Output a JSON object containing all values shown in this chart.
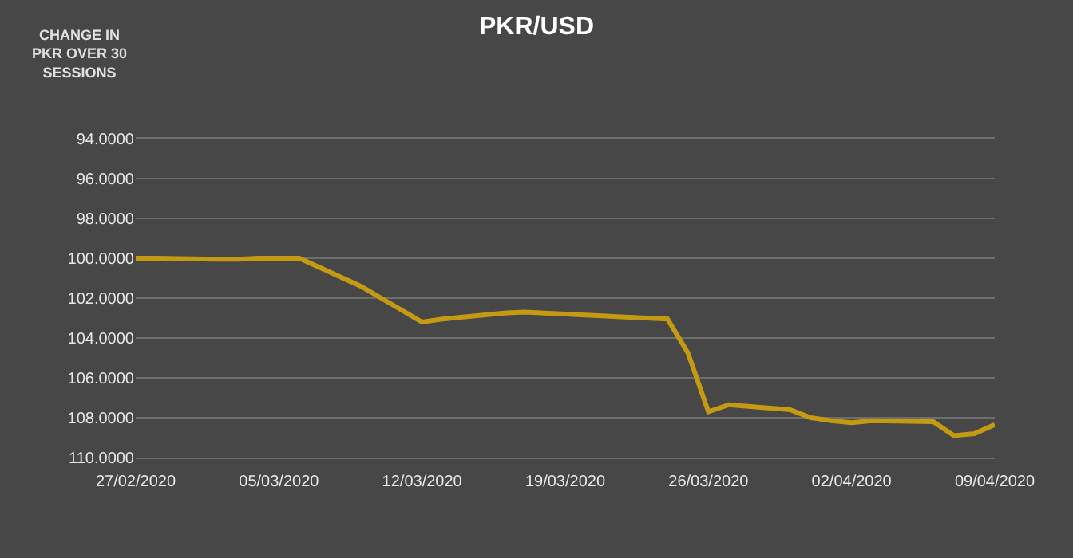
{
  "chart_data": {
    "type": "line",
    "title": "PKR/USD",
    "ylabel": "CHANGE IN\nPKR OVER 30\nSESSIONS",
    "x": [
      "2020-02-27",
      "2020-02-28",
      "2020-03-02",
      "2020-03-03",
      "2020-03-04",
      "2020-03-05",
      "2020-03-06",
      "2020-03-09",
      "2020-03-10",
      "2020-03-11",
      "2020-03-12",
      "2020-03-13",
      "2020-03-16",
      "2020-03-17",
      "2020-03-18",
      "2020-03-19",
      "2020-03-20",
      "2020-03-24",
      "2020-03-25",
      "2020-03-26",
      "2020-03-27",
      "2020-03-30",
      "2020-03-31",
      "2020-04-01",
      "2020-04-02",
      "2020-04-03",
      "2020-04-06",
      "2020-04-07",
      "2020-04-08",
      "2020-04-09"
    ],
    "series": [
      {
        "color": "#c49a12",
        "values": [
          100.0,
          100.0,
          100.05,
          100.05,
          100.0,
          100.0,
          100.0,
          101.4,
          102.0,
          102.6,
          103.2,
          103.05,
          102.75,
          102.7,
          102.75,
          102.8,
          102.85,
          103.05,
          104.75,
          107.7,
          107.35,
          107.6,
          108.0,
          108.15,
          108.25,
          108.15,
          108.2,
          108.9,
          108.8,
          108.35
        ]
      }
    ],
    "xlim": [
      "2020-02-27",
      "2020-04-09"
    ],
    "xticks": [
      {
        "value": "2020-02-27",
        "label": "27/02/2020"
      },
      {
        "value": "2020-03-05",
        "label": "05/03/2020"
      },
      {
        "value": "2020-03-12",
        "label": "12/03/2020"
      },
      {
        "value": "2020-03-19",
        "label": "19/03/2020"
      },
      {
        "value": "2020-03-26",
        "label": "26/03/2020"
      },
      {
        "value": "2020-04-02",
        "label": "02/04/2020"
      },
      {
        "value": "2020-04-09",
        "label": "09/04/2020"
      }
    ],
    "ylim": [
      110,
      94
    ],
    "yticks": [
      {
        "value": 94,
        "label": "94.0000"
      },
      {
        "value": 96,
        "label": "96.0000"
      },
      {
        "value": 98,
        "label": "98.0000"
      },
      {
        "value": 100,
        "label": "100.0000"
      },
      {
        "value": 102,
        "label": "102.0000"
      },
      {
        "value": 104,
        "label": "104.0000"
      },
      {
        "value": 106,
        "label": "106.0000"
      },
      {
        "value": 108,
        "label": "108.0000"
      },
      {
        "value": 110,
        "label": "110.0000"
      }
    ],
    "grid": "y",
    "marker": "none",
    "line_style": "solid"
  }
}
